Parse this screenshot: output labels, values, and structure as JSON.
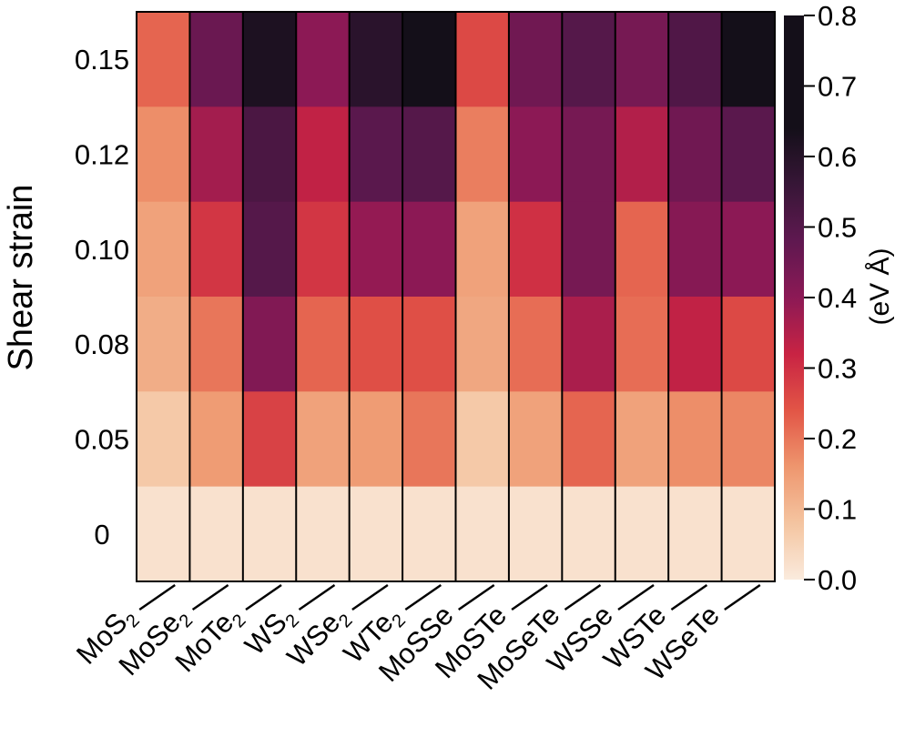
{
  "chart_data": {
    "type": "heatmap",
    "title": "",
    "xlabel": "",
    "ylabel": "Shear strain",
    "colorbar_label": "(eV Å)",
    "colorbar_range": [
      0.0,
      0.8
    ],
    "colorbar_ticks": [
      "0.0",
      "0.1",
      "0.2",
      "0.3",
      "0.4",
      "0.5",
      "0.6",
      "0.7",
      "0.8"
    ],
    "colorbar_tick_values": [
      0.0,
      0.1,
      0.2,
      0.3,
      0.4,
      0.5,
      0.6,
      0.7,
      0.8
    ],
    "materials": [
      {
        "base": "MoS",
        "sub": "2"
      },
      {
        "base": "MoSe",
        "sub": "2"
      },
      {
        "base": "MoTe",
        "sub": "2"
      },
      {
        "base": "WS",
        "sub": "2"
      },
      {
        "base": "WSe",
        "sub": "2"
      },
      {
        "base": "WTe",
        "sub": "2"
      },
      {
        "base": "MoSSe",
        "sub": ""
      },
      {
        "base": "MoSTe",
        "sub": ""
      },
      {
        "base": "MoSeTe",
        "sub": ""
      },
      {
        "base": "WSSe",
        "sub": ""
      },
      {
        "base": "WSTe",
        "sub": ""
      },
      {
        "base": "WSeTe",
        "sub": ""
      }
    ],
    "strain_labels": [
      "0.15",
      "0.12",
      "0.10",
      "0.08",
      "0.05",
      "0"
    ],
    "values": [
      [
        0.22,
        0.46,
        0.62,
        0.4,
        0.59,
        0.79,
        0.26,
        0.45,
        0.5,
        0.44,
        0.51,
        0.64
      ],
      [
        0.17,
        0.37,
        0.52,
        0.33,
        0.49,
        0.5,
        0.19,
        0.4,
        0.44,
        0.35,
        0.45,
        0.49
      ],
      [
        0.14,
        0.29,
        0.5,
        0.29,
        0.39,
        0.4,
        0.14,
        0.3,
        0.44,
        0.22,
        0.41,
        0.4
      ],
      [
        0.12,
        0.2,
        0.42,
        0.22,
        0.25,
        0.25,
        0.13,
        0.21,
        0.36,
        0.21,
        0.33,
        0.26
      ],
      [
        0.07,
        0.15,
        0.27,
        0.14,
        0.15,
        0.2,
        0.07,
        0.14,
        0.22,
        0.14,
        0.17,
        0.18
      ],
      [
        0.02,
        0.02,
        0.02,
        0.02,
        0.02,
        0.02,
        0.02,
        0.02,
        0.02,
        0.02,
        0.02,
        0.02
      ]
    ]
  }
}
